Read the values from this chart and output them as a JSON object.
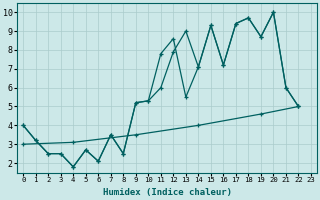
{
  "xlabel": "Humidex (Indice chaleur)",
  "bg_color": "#cce8e8",
  "line_color": "#006060",
  "grid_color": "#aacccc",
  "xlim": [
    0,
    23
  ],
  "ylim": [
    1.5,
    10.5
  ],
  "xticks": [
    0,
    1,
    2,
    3,
    4,
    5,
    6,
    7,
    8,
    9,
    10,
    11,
    12,
    13,
    14,
    15,
    16,
    17,
    18,
    19,
    20,
    21,
    22,
    23
  ],
  "yticks": [
    2,
    3,
    4,
    5,
    6,
    7,
    8,
    9,
    10
  ],
  "line1_x": [
    0,
    1,
    2,
    3,
    4,
    5,
    6,
    7,
    8,
    9,
    10,
    11,
    12,
    13,
    14,
    15,
    16,
    17,
    18,
    19,
    20,
    21,
    22
  ],
  "line1_y": [
    4.0,
    3.2,
    2.5,
    2.5,
    1.8,
    2.7,
    2.1,
    3.5,
    2.5,
    5.2,
    5.3,
    7.8,
    8.6,
    5.5,
    7.1,
    9.3,
    7.2,
    9.4,
    9.7,
    8.7,
    10.0,
    6.0,
    5.0
  ],
  "line2_x": [
    0,
    1,
    2,
    3,
    4,
    5,
    6,
    7,
    8,
    9,
    10,
    11,
    12,
    13,
    14,
    15,
    16,
    17,
    18,
    19,
    20,
    21,
    22
  ],
  "line2_y": [
    4.0,
    3.2,
    2.5,
    2.5,
    1.8,
    2.7,
    2.1,
    3.5,
    2.5,
    5.2,
    5.3,
    6.0,
    7.9,
    9.0,
    7.1,
    9.3,
    7.2,
    9.4,
    9.7,
    8.7,
    10.0,
    6.0,
    5.0
  ],
  "line3_x": [
    0,
    4,
    9,
    14,
    19,
    22
  ],
  "line3_y": [
    3.0,
    3.1,
    3.5,
    4.0,
    4.6,
    5.0
  ],
  "xlabel_fontsize": 6.5,
  "xlabel_color": "#006060",
  "tick_fontsize_x": 5.2,
  "tick_fontsize_y": 6.0
}
